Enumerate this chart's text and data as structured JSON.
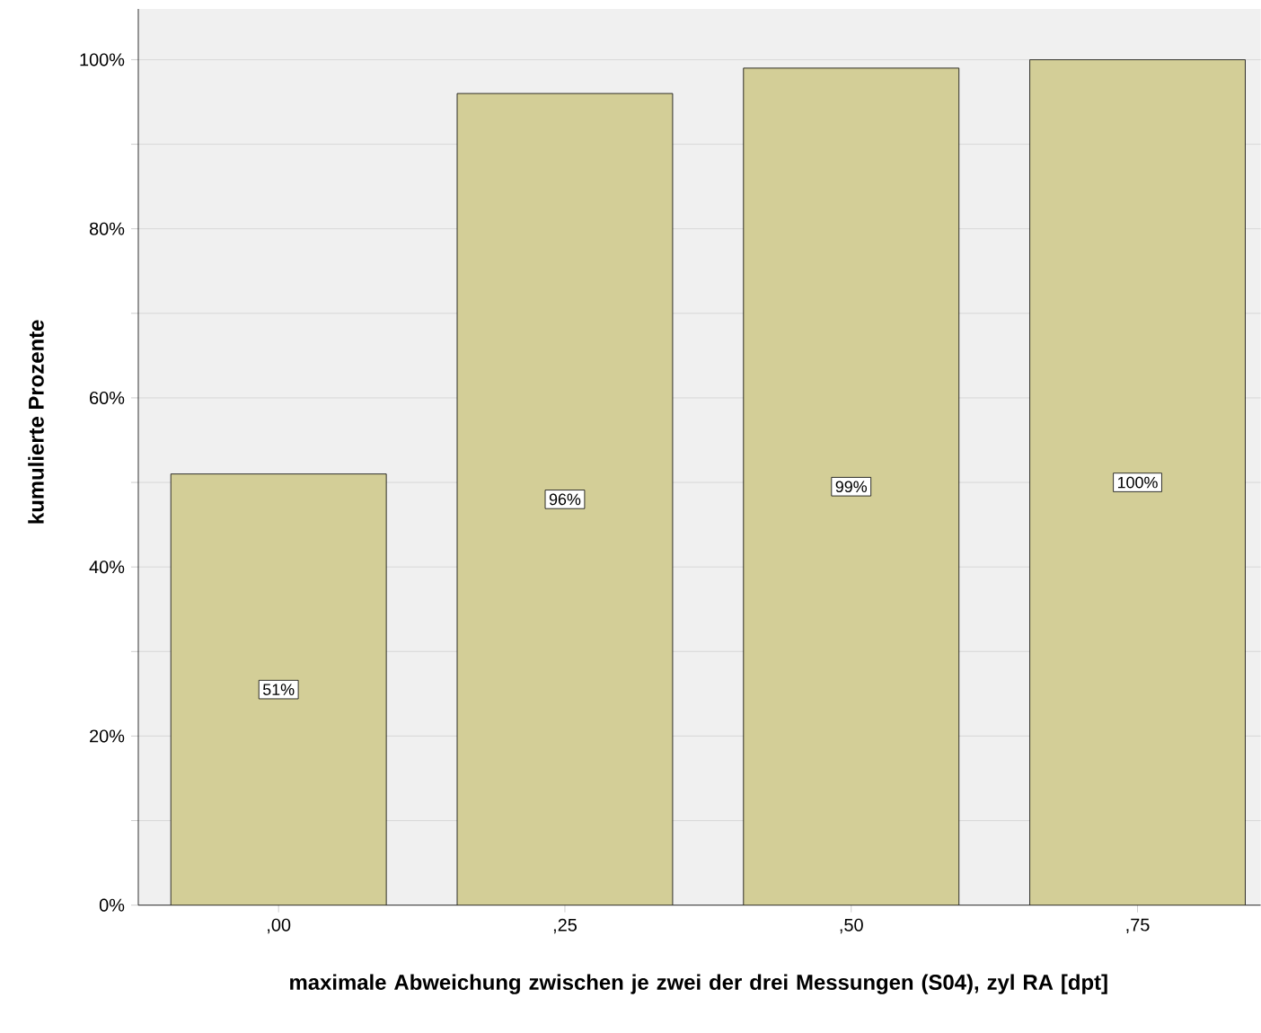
{
  "chart_data": {
    "type": "bar",
    "xlabel": "maximale Abweichung zwischen je zwei der drei Messungen (S04), zyl RA [dpt]",
    "ylabel": "kumulierte Prozente",
    "categories": [
      ",00",
      ",25",
      ",50",
      ",75"
    ],
    "values": [
      51,
      96,
      99,
      100
    ],
    "value_labels": [
      "51%",
      "96%",
      "99%",
      "100%"
    ],
    "color": "#d3ce97",
    "ylim": [
      0,
      106
    ],
    "yticks": [
      {
        "value": 0,
        "label": "0%"
      },
      {
        "value": 10,
        "label": null
      },
      {
        "value": 20,
        "label": "20%"
      },
      {
        "value": 30,
        "label": null
      },
      {
        "value": 40,
        "label": "40%"
      },
      {
        "value": 50,
        "label": null
      },
      {
        "value": 60,
        "label": "60%"
      },
      {
        "value": 70,
        "label": null
      },
      {
        "value": 80,
        "label": "80%"
      },
      {
        "value": 90,
        "label": null
      },
      {
        "value": 100,
        "label": "100%"
      }
    ],
    "grid": "y"
  }
}
